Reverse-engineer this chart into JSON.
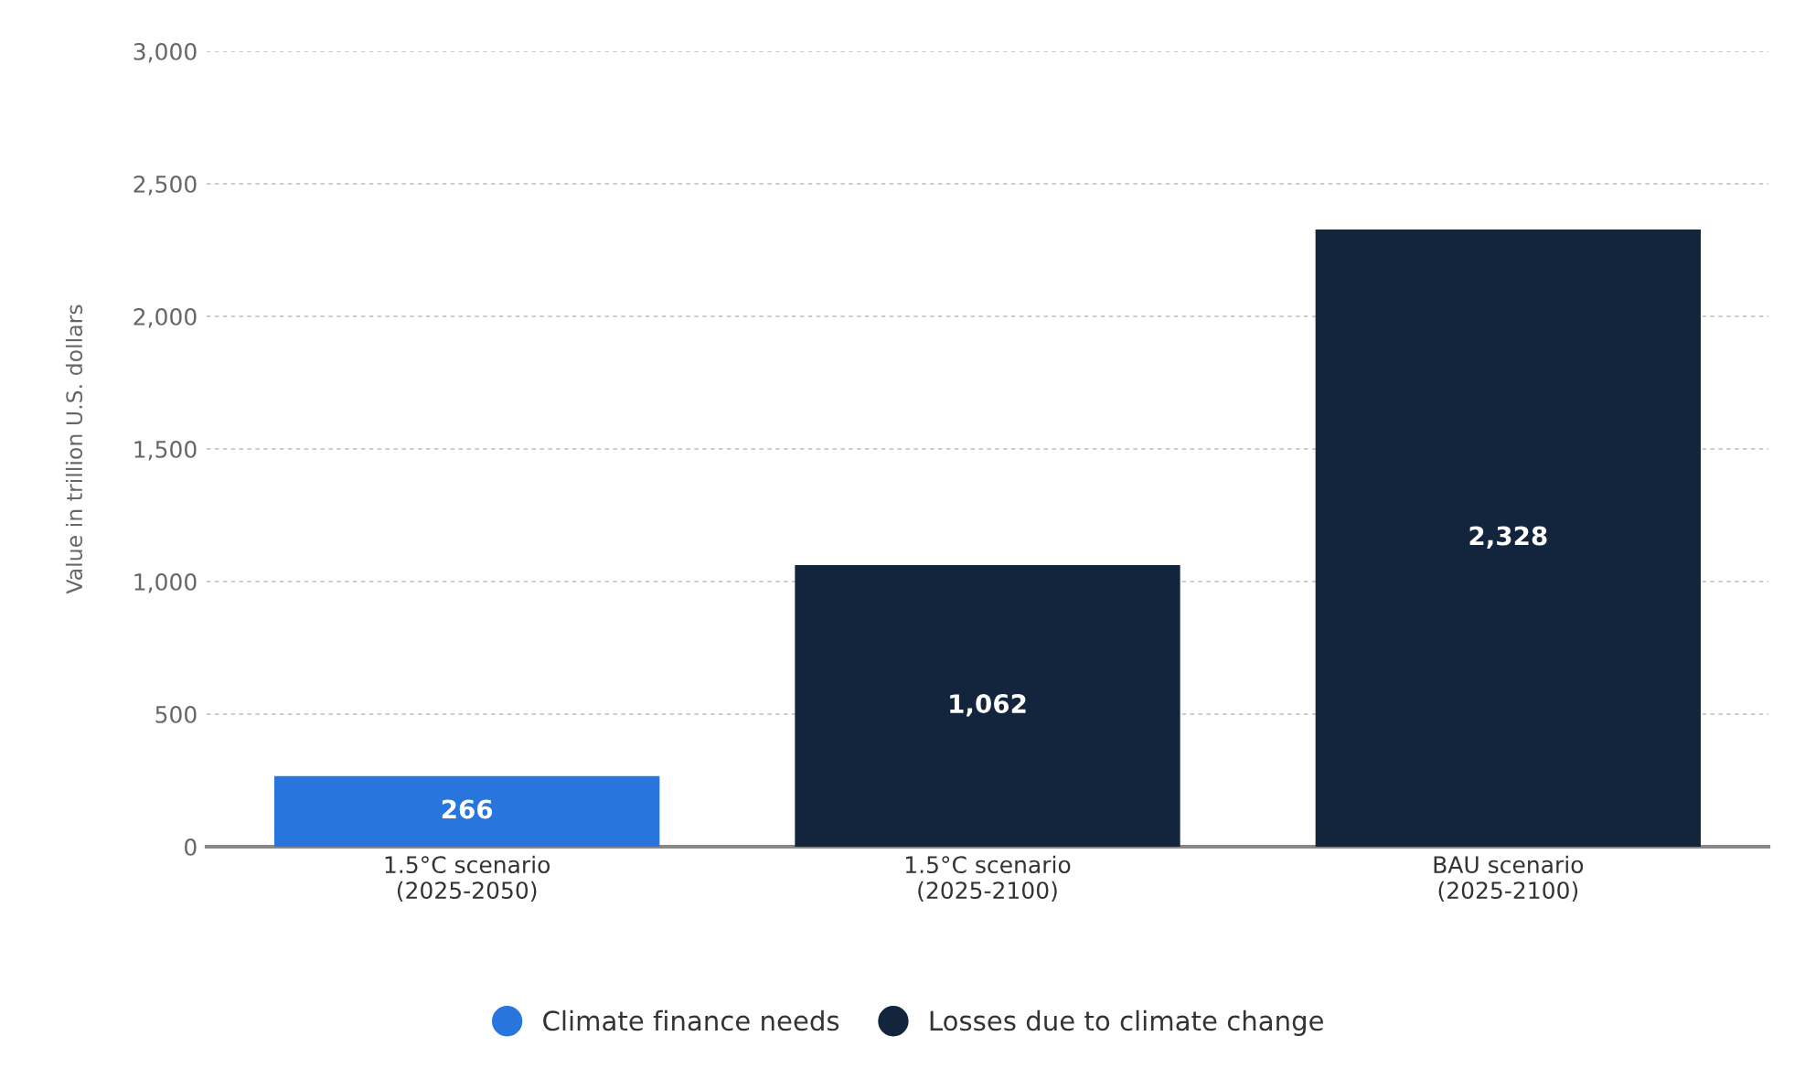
{
  "chart_data": {
    "type": "bar",
    "ylabel": "Value in trillion U.S. dollars",
    "categories": [
      "1.5°C scenario\n(2025-2050)",
      "1.5°C scenario\n(2025-2100)",
      "BAU scenario\n(2025-2100)"
    ],
    "series": [
      {
        "name": "Climate finance needs",
        "color": "#2876dd",
        "values": [
          266,
          null,
          null
        ],
        "value_labels": [
          "266",
          null,
          null
        ]
      },
      {
        "name": "Losses due to climate change",
        "color": "#13253c",
        "values": [
          null,
          1062,
          2328
        ],
        "value_labels": [
          null,
          "1,062",
          "2,328"
        ]
      }
    ],
    "ylim": [
      0,
      3000
    ],
    "yticks": [
      {
        "value": 0,
        "label": "0"
      },
      {
        "value": 500,
        "label": "500"
      },
      {
        "value": 1000,
        "label": "1,000"
      },
      {
        "value": 1500,
        "label": "1,500"
      },
      {
        "value": 2000,
        "label": "2,000"
      },
      {
        "value": 2500,
        "label": "2,500"
      },
      {
        "value": 3000,
        "label": "3,000"
      }
    ],
    "grid": "y",
    "legend": "bottom",
    "marker": "circle"
  }
}
